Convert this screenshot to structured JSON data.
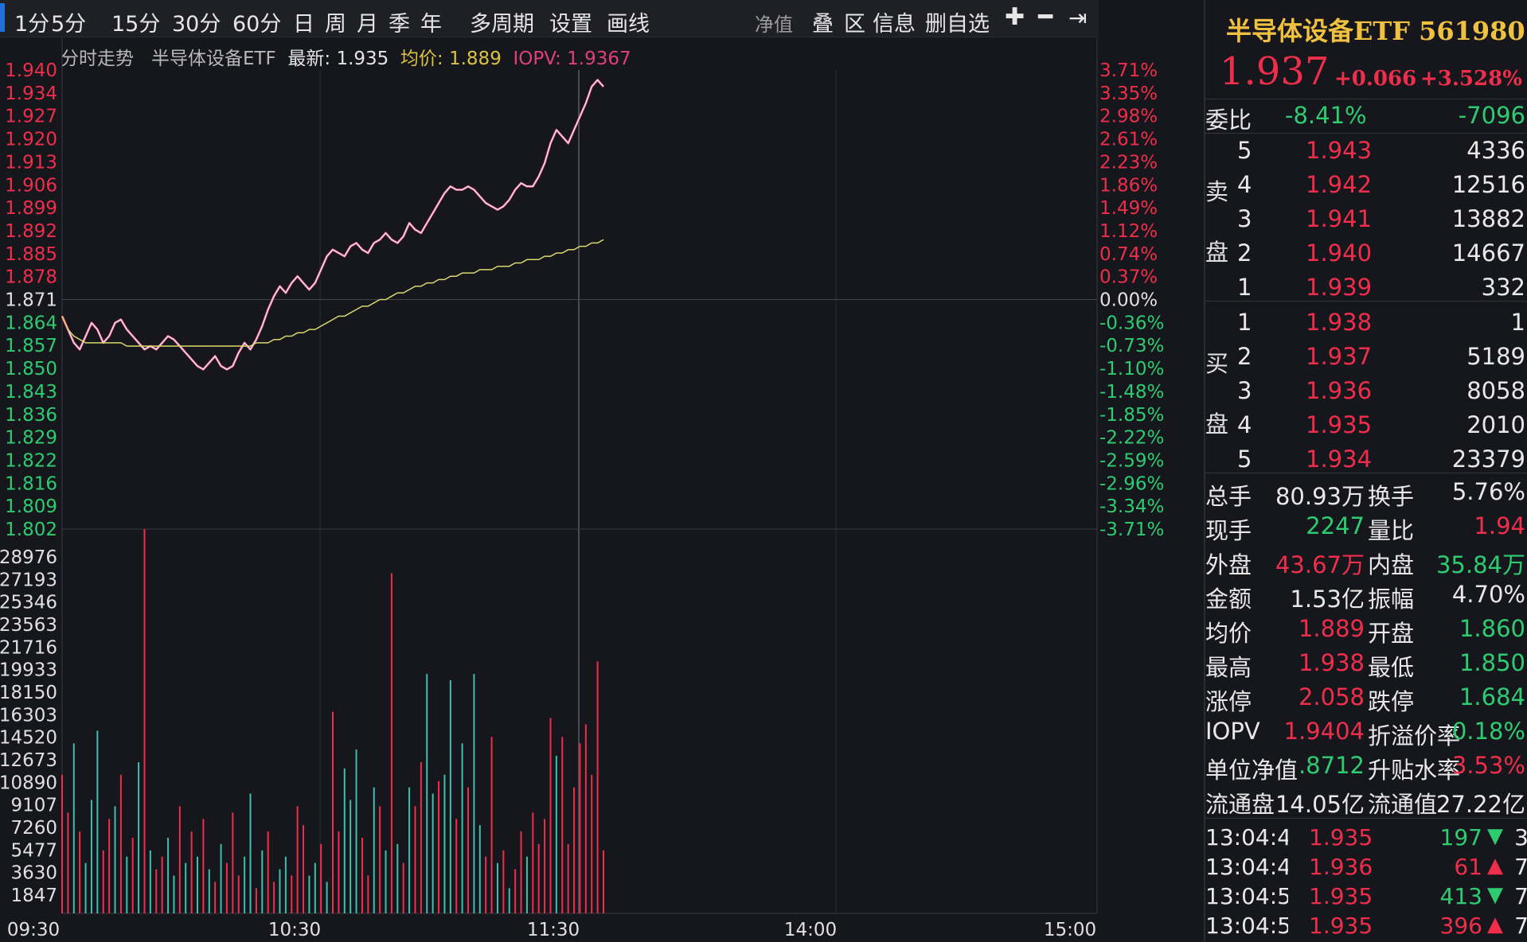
{
  "toolbar": {
    "periods": [
      "1分",
      "5分",
      "15分",
      "30分",
      "60分",
      "日",
      "周",
      "月",
      "季",
      "年",
      "多周期",
      "设置",
      "画线"
    ],
    "right_tools": [
      "净值",
      "叠",
      "区",
      "信息",
      "删自选"
    ],
    "icons": [
      "plus-icon",
      "minus-icon",
      "expand-right-icon"
    ]
  },
  "chart_header": {
    "name": "分时走势",
    "security": "半导体设备ETF",
    "latest_label": "最新:",
    "latest": "1.935",
    "avg_label": "均价:",
    "avg": "1.889",
    "iopv_label": "IOPV:",
    "iopv": "1.9367"
  },
  "chart_data": {
    "type": "line",
    "x_ticks": [
      "09:30",
      "10:30",
      "11:30",
      "14:00",
      "15:00"
    ],
    "price_ticks": [
      "1.940",
      "1.934",
      "1.927",
      "1.920",
      "1.913",
      "1.906",
      "1.899",
      "1.892",
      "1.885",
      "1.878",
      "1.871",
      "1.864",
      "1.857",
      "1.850",
      "1.843",
      "1.836",
      "1.829",
      "1.822",
      "1.816",
      "1.809",
      "1.802"
    ],
    "pct_ticks": [
      "3.71%",
      "3.35%",
      "2.98%",
      "2.61%",
      "2.23%",
      "1.86%",
      "1.49%",
      "1.12%",
      "0.74%",
      "0.37%",
      "0.00%",
      "-0.36%",
      "-0.73%",
      "-1.10%",
      "-1.48%",
      "-1.85%",
      "-2.22%",
      "-2.59%",
      "-2.96%",
      "-3.34%",
      "-3.71%"
    ],
    "volume_ticks": [
      "28976",
      "27193",
      "25346",
      "23563",
      "21716",
      "19933",
      "18150",
      "16303",
      "14520",
      "12673",
      "10890",
      "9107",
      "7260",
      "5477",
      "3630",
      "1847"
    ],
    "price_range": [
      1.802,
      1.94
    ],
    "volume_max": 30500,
    "prev_close": 1.871,
    "price": [
      1.866,
      1.862,
      1.858,
      1.856,
      1.86,
      1.864,
      1.862,
      1.858,
      1.86,
      1.864,
      1.865,
      1.862,
      1.86,
      1.858,
      1.856,
      1.857,
      1.856,
      1.858,
      1.86,
      1.859,
      1.857,
      1.855,
      1.853,
      1.851,
      1.85,
      1.852,
      1.854,
      1.851,
      1.85,
      1.851,
      1.855,
      1.858,
      1.856,
      1.859,
      1.863,
      1.868,
      1.872,
      1.875,
      1.873,
      1.876,
      1.878,
      1.876,
      1.874,
      1.876,
      1.88,
      1.884,
      1.886,
      1.885,
      1.884,
      1.887,
      1.888,
      1.886,
      1.885,
      1.888,
      1.889,
      1.891,
      1.889,
      1.888,
      1.89,
      1.894,
      1.892,
      1.891,
      1.894,
      1.897,
      1.9,
      1.903,
      1.905,
      1.904,
      1.904,
      1.905,
      1.904,
      1.902,
      1.9,
      1.899,
      1.898,
      1.899,
      1.901,
      1.904,
      1.906,
      1.905,
      1.905,
      1.908,
      1.912,
      1.918,
      1.922,
      1.92,
      1.918,
      1.922,
      1.926,
      1.93,
      1.935,
      1.937,
      1.935
    ],
    "avg_price": [
      1.866,
      1.862,
      1.86,
      1.859,
      1.858,
      1.858,
      1.858,
      1.858,
      1.858,
      1.858,
      1.858,
      1.857,
      1.857,
      1.857,
      1.857,
      1.857,
      1.857,
      1.857,
      1.857,
      1.857,
      1.857,
      1.857,
      1.857,
      1.857,
      1.857,
      1.857,
      1.857,
      1.857,
      1.857,
      1.857,
      1.857,
      1.857,
      1.857,
      1.858,
      1.858,
      1.858,
      1.859,
      1.859,
      1.86,
      1.86,
      1.861,
      1.861,
      1.862,
      1.862,
      1.863,
      1.864,
      1.865,
      1.866,
      1.866,
      1.867,
      1.868,
      1.869,
      1.869,
      1.87,
      1.871,
      1.871,
      1.872,
      1.873,
      1.873,
      1.874,
      1.875,
      1.875,
      1.876,
      1.876,
      1.877,
      1.877,
      1.878,
      1.878,
      1.879,
      1.879,
      1.879,
      1.88,
      1.88,
      1.88,
      1.881,
      1.881,
      1.881,
      1.882,
      1.882,
      1.883,
      1.883,
      1.883,
      1.884,
      1.884,
      1.885,
      1.885,
      1.886,
      1.886,
      1.887,
      1.887,
      1.888,
      1.888,
      1.889
    ],
    "volume": [
      11000,
      8000,
      13500,
      6500,
      4000,
      9000,
      14500,
      5000,
      7500,
      8500,
      11000,
      4500,
      6000,
      12000,
      30500,
      5000,
      3500,
      4500,
      6000,
      3000,
      8500,
      4000,
      6500,
      4500,
      7500,
      3500,
      2500,
      5500,
      4000,
      8000,
      3000,
      4500,
      9500,
      2000,
      5000,
      6500,
      2500,
      3500,
      4500,
      3000,
      8500,
      7000,
      3000,
      4000,
      5500,
      2500,
      16000,
      6500,
      11500,
      9000,
      13000,
      6000,
      3000,
      10000,
      8500,
      5000,
      27000,
      5500,
      4000,
      10000,
      8500,
      12000,
      19000,
      9500,
      10500,
      11000,
      18500,
      7500,
      13500,
      10000,
      19000,
      7000,
      4500,
      14000,
      4000,
      5000,
      2000,
      3500,
      6500,
      4500,
      8000,
      5500,
      7500,
      15500,
      12500,
      14000,
      5500,
      10000,
      13500,
      15000,
      11000,
      20000,
      5000
    ],
    "volume_up": [
      true,
      true,
      false,
      true,
      false,
      false,
      false,
      true,
      true,
      false,
      true,
      false,
      true,
      false,
      true,
      false,
      true,
      true,
      false,
      false,
      true,
      false,
      true,
      false,
      true,
      false,
      true,
      false,
      true,
      true,
      true,
      false,
      false,
      true,
      false,
      true,
      true,
      false,
      false,
      true,
      true,
      true,
      false,
      false,
      true,
      false,
      true,
      true,
      false,
      false,
      false,
      true,
      true,
      false,
      true,
      false,
      true,
      false,
      true,
      false,
      true,
      true,
      false,
      false,
      true,
      false,
      false,
      true,
      false,
      true,
      false,
      false,
      true,
      true,
      false,
      true,
      false,
      true,
      true,
      false,
      true,
      true,
      true,
      true,
      false,
      true,
      true,
      true,
      true,
      true,
      true,
      true,
      true
    ]
  },
  "panel": {
    "title": "半导体设备ETF 561980",
    "price": "1.937",
    "change": "+0.066",
    "change_pct": "+3.528%",
    "webi": {
      "label": "委比",
      "pct": "-8.41%",
      "diff": "-7096"
    },
    "sell_label": [
      "卖",
      "盘"
    ],
    "buy_label": [
      "买",
      "盘"
    ],
    "sell": [
      {
        "level": "5",
        "price": "1.943",
        "vol": "4336"
      },
      {
        "level": "4",
        "price": "1.942",
        "vol": "12516"
      },
      {
        "level": "3",
        "price": "1.941",
        "vol": "13882"
      },
      {
        "level": "2",
        "price": "1.940",
        "vol": "14667"
      },
      {
        "level": "1",
        "price": "1.939",
        "vol": "332"
      }
    ],
    "buy": [
      {
        "level": "1",
        "price": "1.938",
        "vol": "1"
      },
      {
        "level": "2",
        "price": "1.937",
        "vol": "5189"
      },
      {
        "level": "3",
        "price": "1.936",
        "vol": "8058"
      },
      {
        "level": "4",
        "price": "1.935",
        "vol": "2010"
      },
      {
        "level": "5",
        "price": "1.934",
        "vol": "23379"
      }
    ],
    "stats": [
      {
        "l1": "总手",
        "v1": "80.93万",
        "c1": "white",
        "l2": "换手",
        "v2": "5.76%",
        "c2": "white"
      },
      {
        "l1": "现手",
        "v1": "2247",
        "c1": "green",
        "l2": "量比",
        "v2": "1.94",
        "c2": "red"
      },
      {
        "l1": "外盘",
        "v1": "43.67万",
        "c1": "red",
        "l2": "内盘",
        "v2": "35.84万",
        "c2": "green"
      },
      {
        "l1": "金额",
        "v1": "1.53亿",
        "c1": "white",
        "l2": "振幅",
        "v2": "4.70%",
        "c2": "white"
      },
      {
        "l1": "均价",
        "v1": "1.889",
        "c1": "red",
        "l2": "开盘",
        "v2": "1.860",
        "c2": "green"
      },
      {
        "l1": "最高",
        "v1": "1.938",
        "c1": "red",
        "l2": "最低",
        "v2": "1.850",
        "c2": "green"
      },
      {
        "l1": "涨停",
        "v1": "2.058",
        "c1": "red",
        "l2": "跌停",
        "v2": "1.684",
        "c2": "green"
      },
      {
        "l1": "IOPV",
        "v1": "1.9404",
        "c1": "red",
        "l2": "折溢价率",
        "v2": "0.18%",
        "c2": "green"
      },
      {
        "l1": "单位净值",
        "v1": ".8712",
        "c1": "green",
        "l2": "升贴水率",
        "v2": "3.53%",
        "c2": "red"
      },
      {
        "l1": "流通盘",
        "v1": "14.05亿",
        "c1": "white",
        "l2": "流通值",
        "v2": "27.22亿",
        "c2": "white"
      }
    ],
    "ticks": [
      {
        "time": "13:04:4(",
        "price": "1.935",
        "vol": "197",
        "dir": "down",
        "extra": "3"
      },
      {
        "time": "13:04:4(",
        "price": "1.936",
        "vol": "61",
        "dir": "up",
        "extra": "7"
      },
      {
        "time": "13:04:5:",
        "price": "1.935",
        "vol": "413",
        "dir": "down",
        "extra": "7"
      },
      {
        "time": "13:04:5:",
        "price": "1.935",
        "vol": "396",
        "dir": "up",
        "extra": "7"
      }
    ]
  },
  "colors": {
    "up": "#ee2e4a",
    "down": "#2ecc71",
    "avg_line": "#d8d86a",
    "price_line": "#e8e8e8",
    "grid": "#2c2d33"
  }
}
